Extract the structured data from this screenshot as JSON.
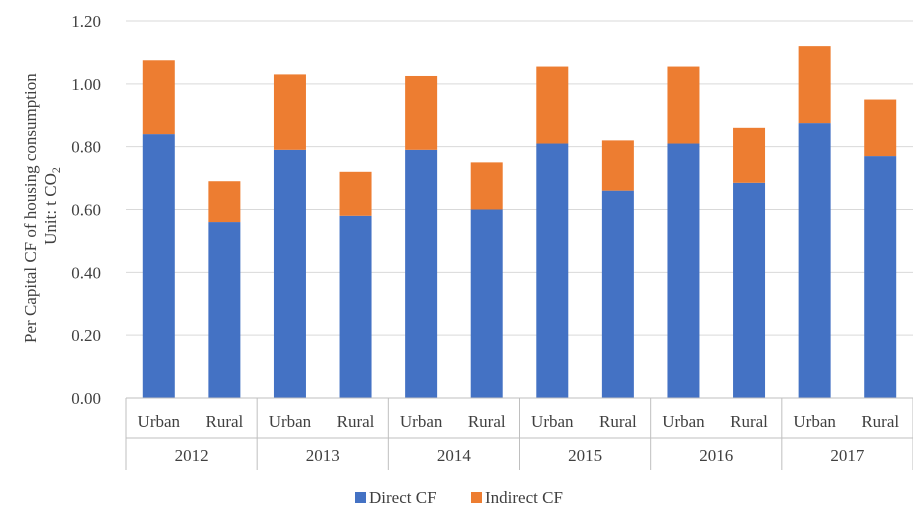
{
  "chart_data": {
    "type": "bar",
    "stacked": true,
    "ylabel_line1": "Per Capital CF of housing consumption",
    "ylabel_line2": "Unit: t CO",
    "ylabel_sub": "2",
    "ylim": [
      0,
      1.2
    ],
    "yticks": [
      "0.00",
      "0.20",
      "0.40",
      "0.60",
      "0.80",
      "1.00",
      "1.20"
    ],
    "years": [
      "2012",
      "2013",
      "2014",
      "2015",
      "2016",
      "2017"
    ],
    "categories": [
      "Urban",
      "Rural",
      "Urban",
      "Rural",
      "Urban",
      "Rural",
      "Urban",
      "Rural",
      "Urban",
      "Rural",
      "Urban",
      "Rural"
    ],
    "series": [
      {
        "name": "Direct CF",
        "color": "#4472C4",
        "values": [
          0.84,
          0.56,
          0.79,
          0.58,
          0.79,
          0.6,
          0.81,
          0.66,
          0.81,
          0.685,
          0.875,
          0.77
        ]
      },
      {
        "name": "Indirect CF",
        "color": "#ED7D31",
        "values": [
          0.235,
          0.13,
          0.24,
          0.14,
          0.235,
          0.15,
          0.245,
          0.16,
          0.245,
          0.175,
          0.245,
          0.18
        ]
      }
    ],
    "grid": true,
    "legend_position": "bottom"
  }
}
